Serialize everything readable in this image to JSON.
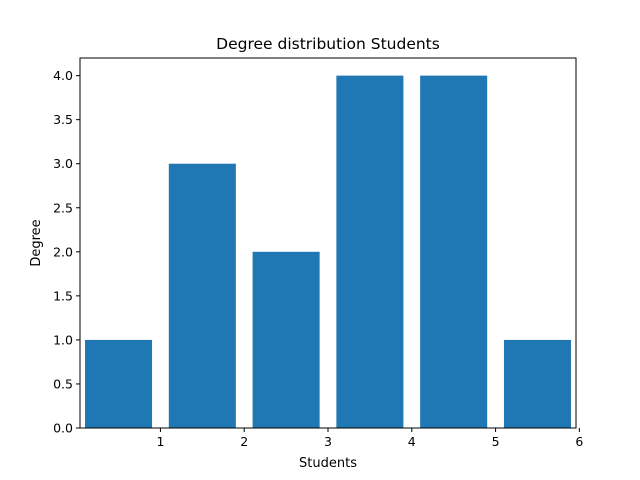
{
  "chart_data": {
    "type": "bar",
    "title": "Degree distribution Students",
    "xlabel": "Students",
    "ylabel": "Degree",
    "x": [
      0.5,
      1.5,
      2.5,
      3.5,
      4.5,
      5.5
    ],
    "values": [
      1,
      3,
      2,
      4,
      4,
      1
    ],
    "bar_width": 0.8,
    "xlim": [
      0.04,
      5.96
    ],
    "ylim": [
      0,
      4.2
    ],
    "xticks": [
      1,
      2,
      3,
      4,
      5,
      6
    ],
    "yticks": [
      0.0,
      0.5,
      1.0,
      1.5,
      2.0,
      2.5,
      3.0,
      3.5,
      4.0
    ],
    "ytick_labels": [
      "0.0",
      "0.5",
      "1.0",
      "1.5",
      "2.0",
      "2.5",
      "3.0",
      "3.5",
      "4.0"
    ],
    "color": "#1f77b4",
    "grid": false,
    "legend": false
  }
}
